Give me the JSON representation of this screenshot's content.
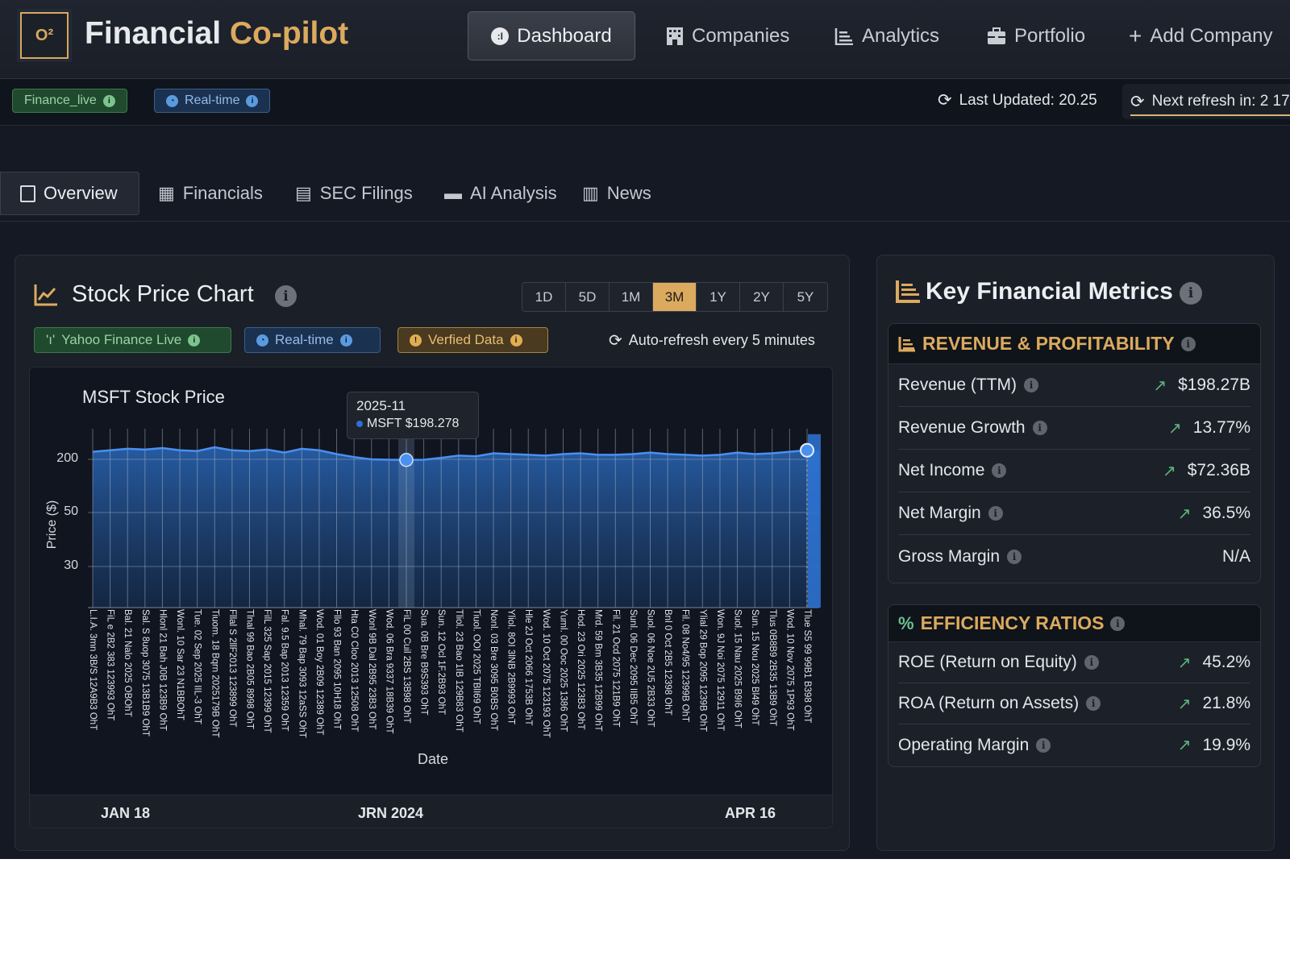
{
  "app": {
    "title_main": "Financial ",
    "title_accent": "Co-pilot",
    "logo_text": "O²"
  },
  "nav": {
    "items": [
      {
        "label": "Dashboard",
        "icon": "dashboard-icon"
      },
      {
        "label": "Companies",
        "icon": "building-icon"
      },
      {
        "label": "Analytics",
        "icon": "bar-chart-icon"
      },
      {
        "label": "Portfolio",
        "icon": "briefcase-icon"
      },
      {
        "label": "Add Company",
        "icon": "plus-icon"
      }
    ]
  },
  "status": {
    "badges": [
      "Finance_live",
      "Real-time"
    ],
    "last_updated": "Last Updated: 20.25",
    "next_refresh": "Next refresh in: 2 17"
  },
  "tabs": [
    "Overview",
    "Financials",
    "SEC Filings",
    "AI Analysis",
    "News"
  ],
  "stock_card": {
    "title": "Stock Price Chart",
    "ranges": [
      "1D",
      "5D",
      "1M",
      "3M",
      "1Y",
      "2Y",
      "5Y"
    ],
    "selected_range": "3M",
    "badges": [
      "Yahoo Finance Live",
      "Real-time",
      "Verfied Data"
    ],
    "auto_refresh": "Auto-refresh every 5 minutes",
    "bottom_labels": [
      "JAN 18",
      "JRN 2024",
      "APR 16"
    ]
  },
  "colors": {
    "accent": "#dcaa5e",
    "line": "#4a90f0",
    "positive": "#5fb37a",
    "live_green": "#1f4a2e",
    "realtime_blue": "#1b3150"
  },
  "chart_data": {
    "type": "area",
    "title": "MSFT Stock Price",
    "xlabel": "Date",
    "ylabel": "Price ($)",
    "yticks": [
      200,
      50,
      30
    ],
    "grid": true,
    "tooltip": {
      "date": "2025-11",
      "label": "MSFT $198.278"
    },
    "highlight_index": 18,
    "x": [
      "L.I.A. 3mn 3B/S 12A9B3 OhT",
      "FiL e 2B2 383 123993 OhT",
      "Bal. 21 Nalo 2025 OBOhT",
      "Sal. S 8uop 3075 13B1B9 OhT",
      "Hlonl 21 Bah J0B 123B9 OhT",
      "Wonl. 10 Sar 23 N1BBOhT",
      "Tue. 02 Sep 2025 IIL-3 OhT",
      "Tiuom. 18 Bqrn 2025179B OhT",
      "Fllal S 2llF2013 123899 OhT",
      "Tlnal 99 Bao 2B05 8998 OhT",
      "FilL 325 Sap 2015 12399 OhT",
      "Fal. 9.5 Bap 2013 12359 OhT",
      "Mhal. 79 Bap 3093 12aSS OhT",
      "Wod. 01 Boy 2B09 12389 OhT",
      "Fllo 93 Ban 2095 10H18 OhT",
      "Hta C0 Cloo 2013 12508 OhT",
      "Wonl 9B Dal 2B95 23B3 OhT",
      "Wod. 06 Bra 9337 18B39 OhT",
      "FiL 00 Cuil 2BS 13B98 OhT",
      "Sua. 0B Bre B9S393 OhT",
      "Sun. 12 Ocl 1F.2B93 OhT",
      "Tliol. 23 Bao 1IB 129B83 OhT",
      "Tiuol. OOI 2025 TBlI69 OhT",
      "Nonl. 03 Bre 3095 B0BS OhT",
      "Yliol. 8OI 3lNB 2B9993 OhT",
      "Hle 2J Oct 2066 1753B OhT",
      "Wod. 10 Oct 2075 123193 OhT",
      "Yuml. 00 Ooc 2025 1386 OhT",
      "Hod. 23 Ori 2025 123B3 OhT",
      "Mrd. 59 Bm 3B35 12B99 OhT",
      "Fil. 21 Ocd 2075 121B9 OhT",
      "Sunl. 06 Dec 2095 IIB5 OhT",
      "Suol. 06 Noe 2U5 2B33 OhT",
      "Bnl 0 Oct 2B5 12398 OhT",
      "Fil. 08 No4/95 12399B OhT",
      "Ylial 29 Bop 2095 1239B OhT",
      "Won. 9J Noi 2075 12911 OhT",
      "Suol. 15 Nau 2025 B9I6 OhT",
      "Sun. 15 Nou 2025 Bl49 OhT",
      "Tlus 0B8B9 2B35 13B9 OhT",
      "Wod. 10 Nov 2075 1P93 OhT",
      "Tlue S5 99 99B1 B398 OhT"
    ],
    "series": [
      {
        "name": "MSFT",
        "values": [
          210,
          212,
          214,
          213,
          215,
          212,
          211,
          216,
          212,
          211,
          213,
          209,
          214,
          212,
          207,
          203,
          200,
          199,
          198.278,
          199,
          202,
          205,
          204,
          208,
          207,
          206,
          205,
          207,
          208,
          206,
          206,
          207,
          209,
          207,
          206,
          205,
          206,
          209,
          207,
          208,
          210,
          212
        ]
      }
    ]
  },
  "metrics": {
    "title": "Key Financial Metrics",
    "sections": [
      {
        "title": "REVENUE & PROFITABILITY",
        "rows": [
          {
            "label": "Revenue (TTM)",
            "value": "$198.27B",
            "trend": "up"
          },
          {
            "label": "Revenue Growth",
            "value": "13.77%",
            "trend": "up"
          },
          {
            "label": "Net Income",
            "value": "$72.36B",
            "trend": "up"
          },
          {
            "label": "Net Margin",
            "value": "36.5%",
            "trend": "up"
          },
          {
            "label": "Gross Margin",
            "value": "N/A",
            "trend": "none"
          }
        ]
      },
      {
        "title": "EFFICIENCY RATIOS",
        "rows": [
          {
            "label": "ROE (Return on Equity)",
            "value": "45.2%",
            "trend": "up"
          },
          {
            "label": "ROA (Return on Assets)",
            "value": "21.8%",
            "trend": "up"
          },
          {
            "label": "Operating Margin",
            "value": "19.9%",
            "trend": "up"
          }
        ]
      }
    ]
  }
}
